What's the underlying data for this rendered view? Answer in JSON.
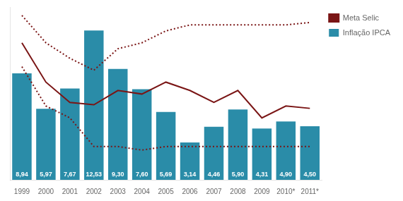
{
  "chart_data": {
    "type": "bar",
    "categories": [
      "1999",
      "2000",
      "2001",
      "2002",
      "2003",
      "2004",
      "2005",
      "2006",
      "2007",
      "2008",
      "2009",
      "2010*",
      "2011*"
    ],
    "series": [
      {
        "name": "Inflação IPCA",
        "type": "bar",
        "color": "#2a8ca8",
        "values": [
          8.94,
          5.97,
          7.67,
          12.53,
          9.3,
          7.6,
          5.69,
          3.14,
          4.46,
          5.9,
          4.31,
          4.9,
          4.5
        ],
        "value_labels": [
          "8,94",
          "5,97",
          "7,67",
          "12,53",
          "9,30",
          "7,60",
          "5,69",
          "3,14",
          "4,46",
          "5,90",
          "4,31",
          "4,90",
          "4,50"
        ],
        "data_labels": true
      },
      {
        "name": "Meta Selic",
        "type": "line",
        "color": "#7a1515",
        "line_style": "solid",
        "values": [
          11.5,
          8.2,
          6.5,
          6.3,
          7.5,
          7.2,
          8.2,
          7.5,
          6.5,
          7.5,
          5.2,
          6.2,
          6.0
        ]
      },
      {
        "type": "line",
        "color": "#7a1515",
        "line_style": "dotted",
        "values": [
          13.8,
          11.5,
          10.2,
          9.2,
          11.0,
          11.5,
          12.5,
          13.0,
          13.0,
          13.0,
          13.0,
          13.0,
          13.2
        ]
      },
      {
        "type": "line",
        "color": "#7a1515",
        "line_style": "dotted",
        "values": [
          9.5,
          6.2,
          5.2,
          2.8,
          2.8,
          2.5,
          2.8,
          2.8,
          2.8,
          2.8,
          2.8,
          2.8,
          2.8
        ]
      }
    ],
    "ylim": [
      0,
      14.5
    ],
    "yticks": [],
    "grid": false,
    "legend": "right",
    "tick_labels": "x"
  }
}
